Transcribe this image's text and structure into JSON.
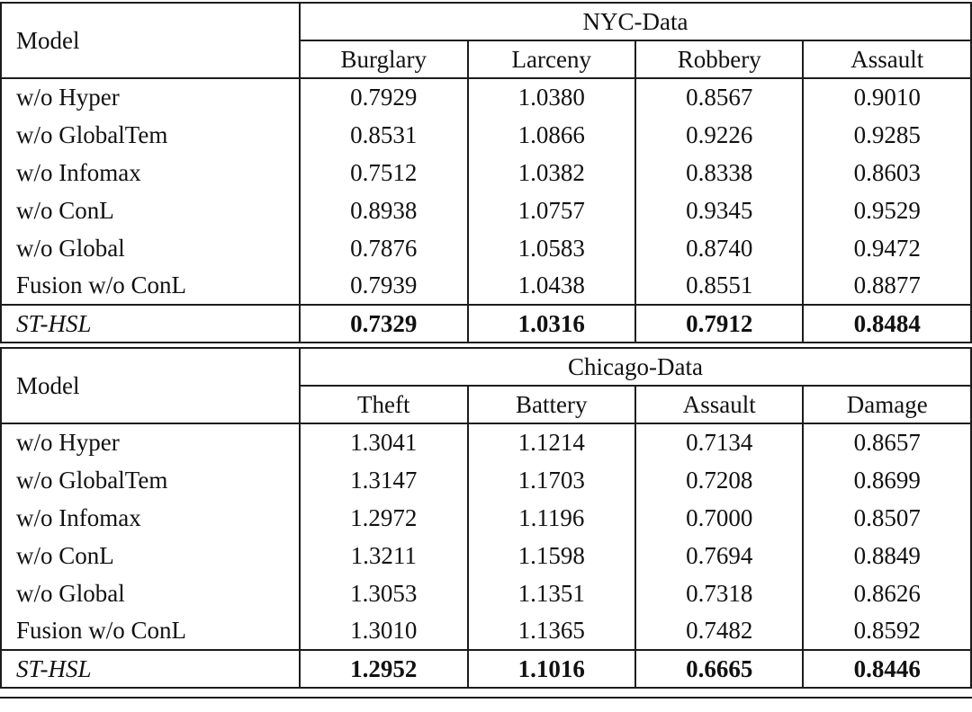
{
  "page": {
    "background_color": "#ffffff",
    "text_color": "#111111",
    "border_color": "#1c1c1c"
  },
  "sections": [
    {
      "model_label": "Model",
      "dataset_label": "NYC-Data",
      "columns": [
        "Burglary",
        "Larceny",
        "Robbery",
        "Assault"
      ],
      "rows": [
        {
          "label": "w/o Hyper",
          "values": [
            "0.7929",
            "1.0380",
            "0.8567",
            "0.9010"
          ]
        },
        {
          "label": "w/o GlobalTem",
          "values": [
            "0.8531",
            "1.0866",
            "0.9226",
            "0.9285"
          ]
        },
        {
          "label": "w/o Infomax",
          "values": [
            "0.7512",
            "1.0382",
            "0.8338",
            "0.8603"
          ]
        },
        {
          "label": "w/o ConL",
          "values": [
            "0.8938",
            "1.0757",
            "0.9345",
            "0.9529"
          ]
        },
        {
          "label": "w/o Global",
          "values": [
            "0.7876",
            "1.0583",
            "0.8740",
            "0.9472"
          ]
        },
        {
          "label": "Fusion w/o ConL",
          "values": [
            "0.7939",
            "1.0438",
            "0.8551",
            "0.8877"
          ]
        },
        {
          "label": "ST-HSL",
          "values": [
            "0.7329",
            "1.0316",
            "0.7912",
            "0.8484"
          ],
          "best": true
        }
      ]
    },
    {
      "model_label": "Model",
      "dataset_label": "Chicago-Data",
      "columns": [
        "Theft",
        "Battery",
        "Assault",
        "Damage"
      ],
      "rows": [
        {
          "label": "w/o Hyper",
          "values": [
            "1.3041",
            "1.1214",
            "0.7134",
            "0.8657"
          ]
        },
        {
          "label": "w/o GlobalTem",
          "values": [
            "1.3147",
            "1.1703",
            "0.7208",
            "0.8699"
          ]
        },
        {
          "label": "w/o Infomax",
          "values": [
            "1.2972",
            "1.1196",
            "0.7000",
            "0.8507"
          ]
        },
        {
          "label": "w/o ConL",
          "values": [
            "1.3211",
            "1.1598",
            "0.7694",
            "0.8849"
          ]
        },
        {
          "label": "w/o Global",
          "values": [
            "1.3053",
            "1.1351",
            "0.7318",
            "0.8626"
          ]
        },
        {
          "label": "Fusion w/o ConL",
          "values": [
            "1.3010",
            "1.1365",
            "0.7482",
            "0.8592"
          ]
        },
        {
          "label": "ST-HSL",
          "values": [
            "1.2952",
            "1.1016",
            "0.6665",
            "0.8446"
          ],
          "best": true
        }
      ]
    }
  ]
}
